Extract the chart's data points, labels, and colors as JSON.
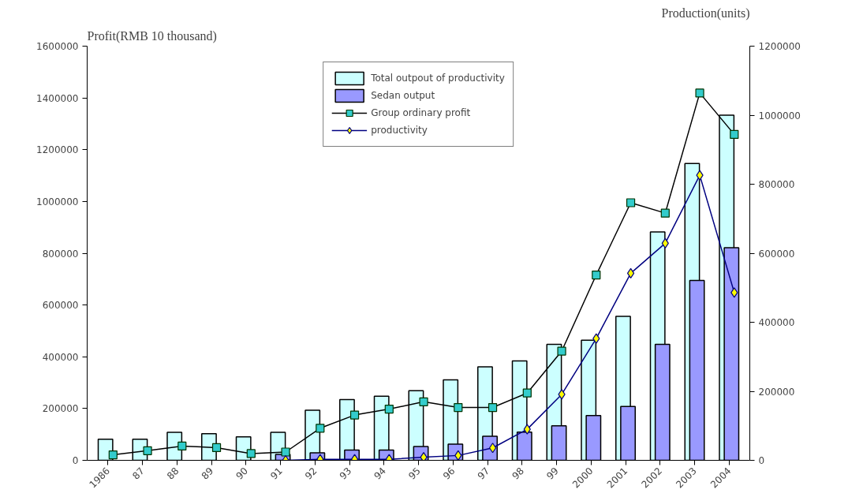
{
  "chart_data": {
    "type": "bar",
    "ylabel": "Profit(RMB 10 thousand)",
    "y2label": "Production(units)",
    "categories": [
      "1986",
      "87",
      "88",
      "89",
      "90",
      "91",
      "92",
      "93",
      "94",
      "95",
      "96",
      "97",
      "98",
      "99",
      "2000",
      "2001",
      "2002",
      "2003",
      "2004"
    ],
    "series": [
      {
        "name": "Total outpout of productivity",
        "axis": "y2",
        "color": "#ccffff",
        "values": [
          61000,
          61000,
          81000,
          77000,
          68000,
          81000,
          145000,
          176000,
          186000,
          202000,
          233000,
          271000,
          288000,
          336000,
          348000,
          417000,
          662000,
          860000,
          1000000
        ]
      },
      {
        "name": "Sedan output",
        "axis": "y2",
        "color": "#9999ff",
        "values": [
          null,
          null,
          null,
          null,
          null,
          17000,
          22000,
          30000,
          30000,
          40000,
          47000,
          70000,
          82000,
          100000,
          130000,
          156000,
          336000,
          521000,
          616000
        ]
      },
      {
        "name": "Group ordinary profit",
        "type": "line",
        "color": "#000000",
        "marker": "square",
        "values": [
          21000,
          37000,
          55000,
          49000,
          26000,
          32000,
          124000,
          175000,
          198000,
          226000,
          204000,
          204000,
          260000,
          422000,
          716000,
          995000,
          955000,
          1419000,
          1259000
        ]
      },
      {
        "name": "productivity",
        "type": "line",
        "axis": "y2",
        "color": "#000080",
        "marker": "diamond",
        "values": [
          null,
          null,
          null,
          null,
          null,
          0,
          3000,
          3000,
          3000,
          9000,
          14000,
          36000,
          90000,
          191000,
          353000,
          542000,
          629000,
          826000,
          486000
        ]
      }
    ],
    "ylim": [
      0,
      1600000
    ],
    "yticks": [
      0,
      200000,
      400000,
      600000,
      800000,
      1000000,
      1200000,
      1400000,
      1600000
    ],
    "y2lim": [
      0,
      1200000
    ],
    "y2ticks": [
      0,
      200000,
      400000,
      600000,
      800000,
      1000000,
      1200000
    ],
    "legend": "top",
    "grid": false
  }
}
